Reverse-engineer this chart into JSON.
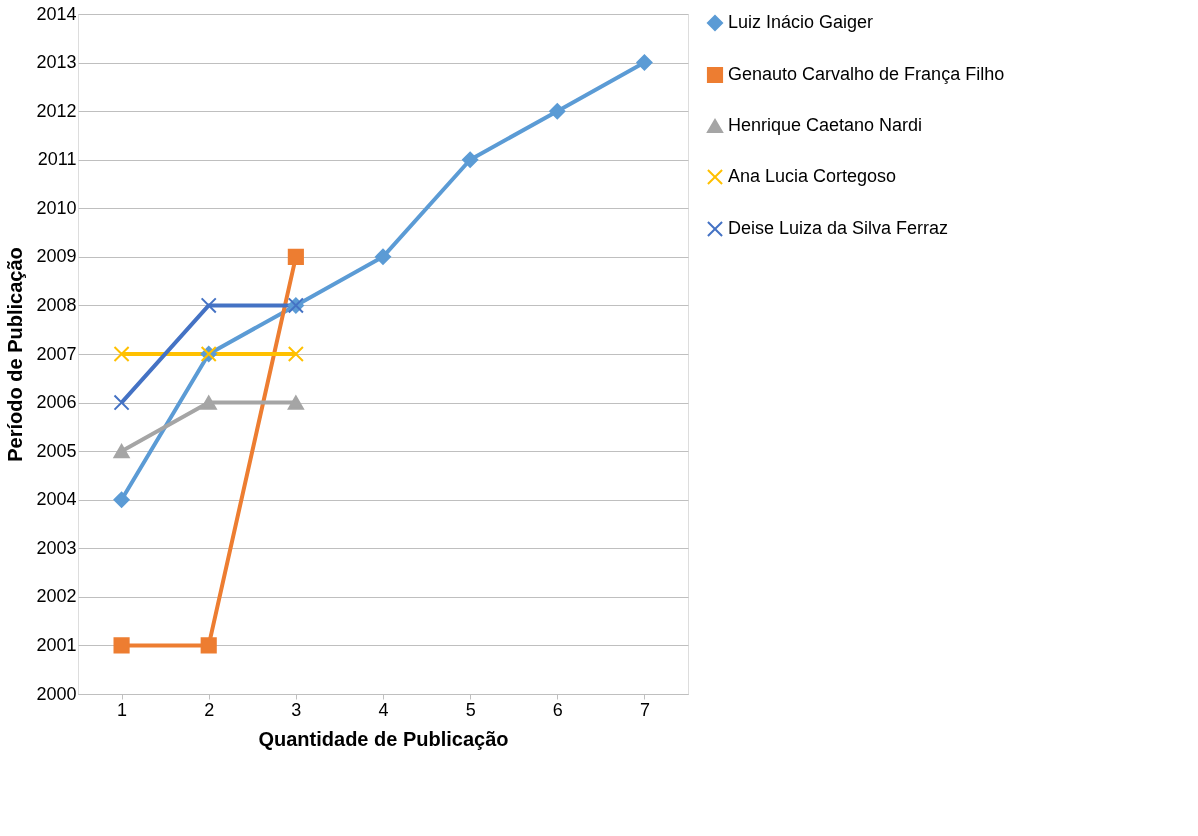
{
  "chart_data": {
    "type": "line",
    "xlabel": "Quantidade de Publicação",
    "ylabel": "Período de Publicação",
    "categories": [
      "1",
      "2",
      "3",
      "4",
      "5",
      "6",
      "7"
    ],
    "series": [
      {
        "name": "Luiz Inácio Gaiger",
        "color": "#5b9bd5",
        "marker": "diamond",
        "values": [
          2004,
          2007,
          2008,
          2009,
          2011,
          2012,
          2013
        ]
      },
      {
        "name": "Genauto Carvalho de França Filho",
        "color": "#ed7d31",
        "marker": "square",
        "values": [
          2001,
          2001,
          2009,
          null,
          null,
          null,
          null
        ]
      },
      {
        "name": "Henrique Caetano Nardi",
        "color": "#a5a5a5",
        "marker": "triangle",
        "values": [
          2005,
          2006,
          2006,
          null,
          null,
          null,
          null
        ]
      },
      {
        "name": "Ana Lucia Cortegoso",
        "color": "#ffc000",
        "marker": "cross",
        "values": [
          2007,
          2007,
          2007,
          null,
          null,
          null,
          null
        ]
      },
      {
        "name": "Deise Luiza da Silva Ferraz",
        "color": "#4472c4",
        "marker": "cross",
        "values": [
          2006,
          2008,
          2008,
          null,
          null,
          null,
          null
        ]
      }
    ],
    "ylim": [
      2000,
      2014
    ],
    "yticks": [
      2000,
      2001,
      2002,
      2003,
      2004,
      2005,
      2006,
      2007,
      2008,
      2009,
      2010,
      2011,
      2012,
      2013,
      2014
    ],
    "grid": "y",
    "legend": "right",
    "line_style": "solid"
  }
}
